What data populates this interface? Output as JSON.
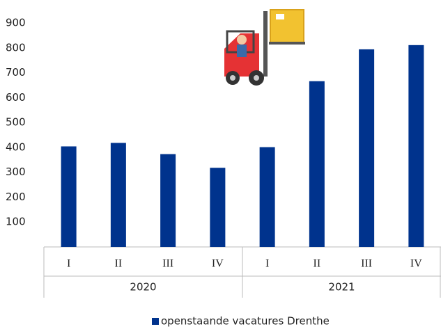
{
  "chart_data": {
    "type": "bar",
    "categories": [
      "I",
      "II",
      "III",
      "IV",
      "I",
      "II",
      "III",
      "IV"
    ],
    "groups": [
      "2020",
      "2021"
    ],
    "series": [
      {
        "name": "openstaande vacatures Drenthe",
        "color": "#00338d",
        "values": [
          404,
          418,
          373,
          318,
          401,
          666,
          794,
          811
        ]
      }
    ],
    "ylim": [
      0,
      900
    ],
    "yticks": [
      100,
      200,
      300,
      400,
      500,
      600,
      700,
      800,
      900
    ],
    "grid": false,
    "legend": "bottom"
  }
}
